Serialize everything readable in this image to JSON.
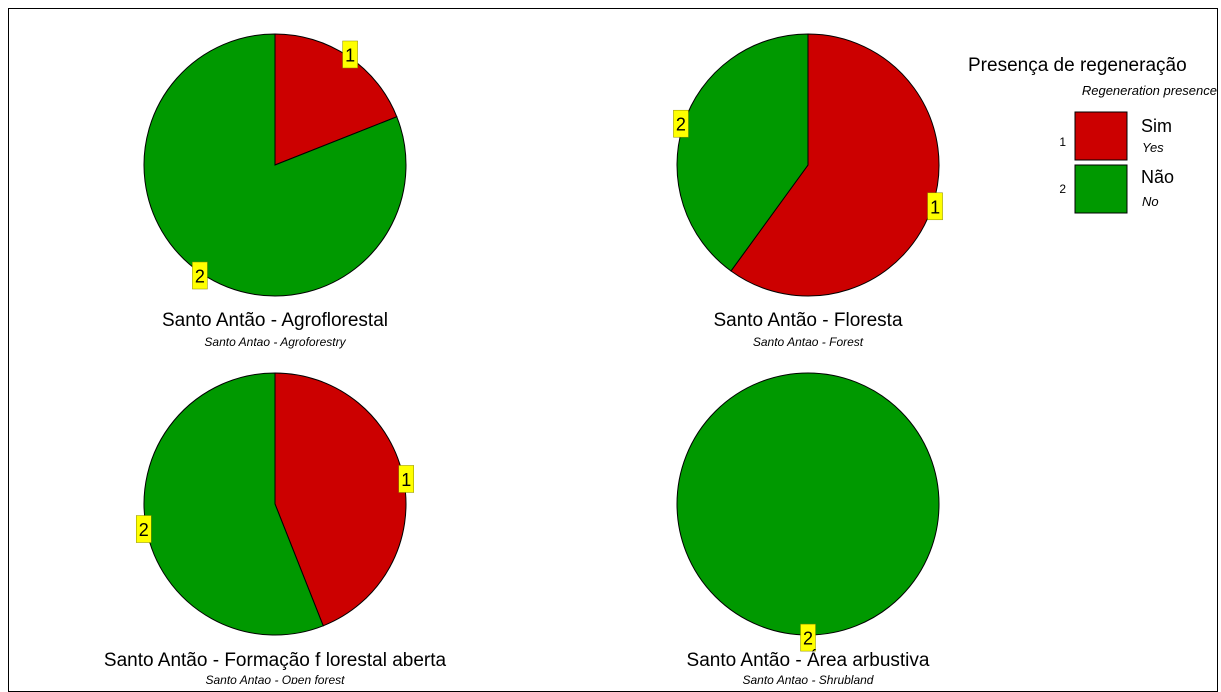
{
  "chart_data": [
    {
      "type": "pie",
      "title": "Santo Antão - Agroflorestal",
      "subtitle": "Santo Antao - Agroforestry",
      "slices": [
        {
          "id": "1",
          "value": 19
        },
        {
          "id": "2",
          "value": 81
        }
      ]
    },
    {
      "type": "pie",
      "title": "Santo Antão - Floresta",
      "subtitle": "Santo Antao - Forest",
      "slices": [
        {
          "id": "1",
          "value": 60
        },
        {
          "id": "2",
          "value": 40
        }
      ]
    },
    {
      "type": "pie",
      "title": "Santo Antão - Formação f lorestal aberta",
      "subtitle": "Santo Antao - Open forest",
      "slices": [
        {
          "id": "1",
          "value": 44
        },
        {
          "id": "2",
          "value": 56
        }
      ]
    },
    {
      "type": "pie",
      "title": "Santo Antão - Área arbustiva",
      "subtitle": "Santo Antao - Shrubland",
      "slices": [
        {
          "id": "2",
          "value": 100
        }
      ]
    }
  ],
  "legend": {
    "title": "Presença de regeneração",
    "subtitle": "Regeneration presence",
    "placement": "top-right",
    "items": [
      {
        "id": "1",
        "name": "Sim",
        "name_en": "Yes",
        "color": "#CC0000"
      },
      {
        "id": "2",
        "name": "Não",
        "name_en": "No",
        "color": "#009900"
      }
    ]
  },
  "colors": {
    "label_box": "#FFFF00",
    "slice_1": "#CC0000",
    "slice_2": "#009900"
  }
}
